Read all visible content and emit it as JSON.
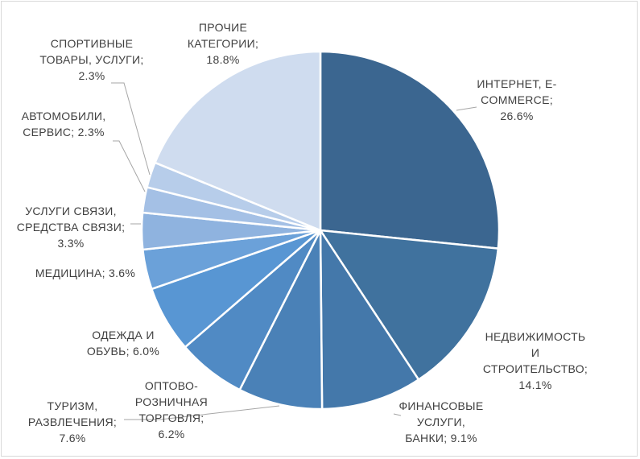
{
  "chart_data": {
    "type": "pie",
    "title": "",
    "slices": [
      {
        "name": "ИНТЕРНЕТ, E-COMMERCE",
        "value": 26.6,
        "label_lines": [
          "ИНТЕРНЕТ, E-",
          "COMMERCE;",
          "26.6%"
        ],
        "color": "#3b6690"
      },
      {
        "name": "НЕДВИЖИМОСТЬ И СТРОИТЕЛЬСТВО",
        "value": 14.1,
        "label_lines": [
          "НЕДВИЖИМОСТЬ",
          "И",
          "СТРОИТЕЛЬСТВО;",
          "14.1%"
        ],
        "color": "#40729e"
      },
      {
        "name": "ФИНАНСОВЫЕ УСЛУГИ, БАНКИ",
        "value": 9.1,
        "label_lines": [
          "ФИНАНСОВЫЕ",
          "УСЛУГИ,",
          "БАНКИ; 9.1%"
        ],
        "color": "#4478aa"
      },
      {
        "name": "ТУРИЗМ, РАЗВЛЕЧЕНИЯ",
        "value": 7.6,
        "label_lines": [
          "ТУРИЗМ,",
          "РАЗВЛЕЧЕНИЯ;",
          "7.6%"
        ],
        "color": "#4a81b7"
      },
      {
        "name": "ОПТОВО-РОЗНИЧНАЯ ТОРГОВЛЯ",
        "value": 6.2,
        "label_lines": [
          "ОПТОВО-",
          "РОЗНИЧНАЯ",
          "ТОРГОВЛЯ;",
          "6.2%"
        ],
        "color": "#508ac4"
      },
      {
        "name": "ОДЕЖДА И ОБУВЬ",
        "value": 6.0,
        "label_lines": [
          "ОДЕЖДА И",
          "ОБУВЬ; 6.0%"
        ],
        "color": "#5896d3"
      },
      {
        "name": "МЕДИЦИНА",
        "value": 3.6,
        "label_lines": [
          "МЕДИЦИНА; 3.6%"
        ],
        "color": "#6ba1d9"
      },
      {
        "name": "УСЛУГИ СВЯЗИ, СРЕДСТВА СВЯЗИ",
        "value": 3.3,
        "label_lines": [
          "УСЛУГИ СВЯЗИ,",
          "СРЕДСТВА СВЯЗИ;",
          "3.3%"
        ],
        "color": "#8fb3df"
      },
      {
        "name": "АВТОМОБИЛИ, СЕРВИС",
        "value": 2.3,
        "label_lines": [
          "АВТОМОБИЛИ,",
          "СЕРВИС; 2.3%"
        ],
        "color": "#a4c0e5"
      },
      {
        "name": "СПОРТИВНЫЕ ТОВАРЫ, УСЛУГИ",
        "value": 2.3,
        "label_lines": [
          "СПОРТИВНЫЕ",
          "ТОВАРЫ, УСЛУГИ;",
          "2.3%"
        ],
        "color": "#b7cdea"
      },
      {
        "name": "ПРОЧИЕ КАТЕГОРИИ",
        "value": 18.8,
        "label_lines": [
          "ПРОЧИЕ",
          "КАТЕГОРИИ;",
          "18.8%"
        ],
        "color": "#cfdcef"
      }
    ],
    "start_angle": "12 o'clock",
    "direction": "clockwise",
    "legend": "none"
  }
}
